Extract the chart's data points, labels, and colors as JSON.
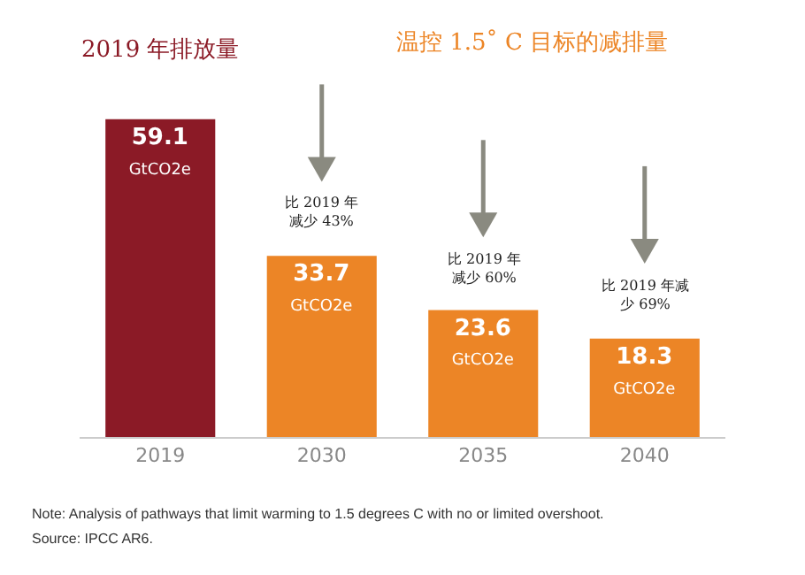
{
  "chart_data": {
    "type": "bar",
    "title": "2019 年排放量",
    "subtitle": "温控 1.5˚ C 目标的减排量",
    "categories": [
      "2019",
      "2030",
      "2035",
      "2040"
    ],
    "values": [
      59.1,
      33.7,
      23.6,
      18.3
    ],
    "colors": [
      "#8b1a26",
      "#ec8526",
      "#ec8526",
      "#ec8526"
    ],
    "value_labels": [
      "59.1\nGtCO2e",
      "33.7\nGtCO2e",
      "23.6\nGtCO2e",
      "18.3\nGtCO2e"
    ],
    "annotations": [
      "比 2019 年减少 43%",
      "比 2019 年减少 60%",
      "比 2019 年减少 69%",
      "Note: Analysis of pathways that limit warming to 1.5 degrees C with no or limited overshoot.",
      "Source: IPCC AR6."
    ],
    "legend": false
  }
}
